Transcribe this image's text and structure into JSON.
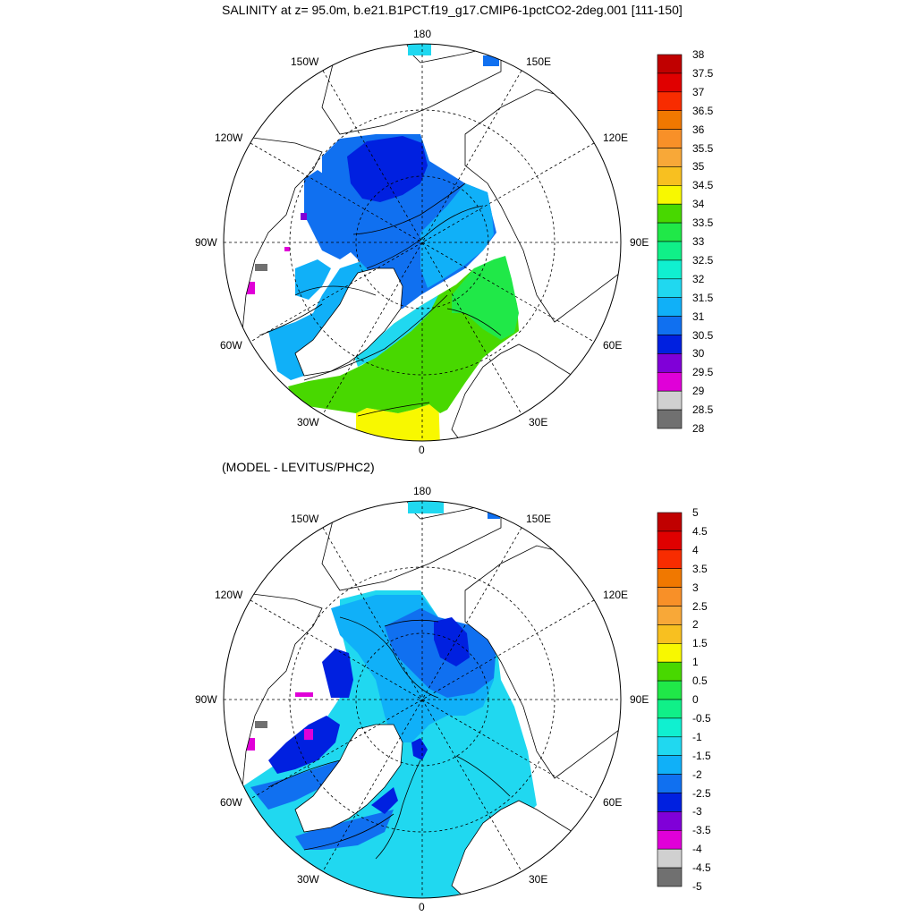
{
  "top_panel": {
    "title": "SALINITY at z=  95.0m, b.e21.B1PCT.f19_g17.CMIP6-1pctCO2-2deg.001 [111-150]",
    "lon_labels": {
      "n180": "180",
      "w150": "150W",
      "e150": "150E",
      "w120": "120W",
      "e120": "120E",
      "w90": "90W",
      "e90": "90E",
      "w60": "60W",
      "e60": "60E",
      "w30": "30W",
      "e30": "30E",
      "zero": "0"
    },
    "colorbar": {
      "labels": [
        "38",
        "37.5",
        "37",
        "36.5",
        "36",
        "35.5",
        "35",
        "34.5",
        "34",
        "33.5",
        "33",
        "32.5",
        "32",
        "31.5",
        "31",
        "30.5",
        "30",
        "29.5",
        "29",
        "28.5",
        "28"
      ],
      "colors": [
        "#c00000",
        "#e00000",
        "#f82c00",
        "#f07800",
        "#f89028",
        "#f8a838",
        "#f8c020",
        "#f8f800",
        "#48d800",
        "#20e848",
        "#10f088",
        "#10f0d0",
        "#20d8f0",
        "#10b0f8",
        "#1070f0",
        "#0020e0",
        "#8000d8",
        "#e000d8",
        "#d0d0d0",
        "#707070"
      ]
    }
  },
  "bottom_panel": {
    "title": "(MODEL - LEVITUS/PHC2)",
    "lon_labels": {
      "n180": "180",
      "w150": "150W",
      "e150": "150E",
      "w120": "120W",
      "e120": "120E",
      "w90": "90W",
      "e90": "90E",
      "w60": "60W",
      "e60": "60E",
      "w30": "30W",
      "e30": "30E",
      "zero": "0"
    },
    "colorbar": {
      "labels": [
        "5",
        "4.5",
        "4",
        "3.5",
        "3",
        "2.5",
        "2",
        "1.5",
        "1",
        "0.5",
        "0",
        "-0.5",
        "-1",
        "-1.5",
        "-2",
        "-2.5",
        "-3",
        "-3.5",
        "-4",
        "-4.5",
        "-5"
      ],
      "colors": [
        "#c00000",
        "#e00000",
        "#f82c00",
        "#f07800",
        "#f89028",
        "#f8a838",
        "#f8c020",
        "#f8f800",
        "#48d800",
        "#20e848",
        "#10f088",
        "#10f0d0",
        "#20d8f0",
        "#10b0f8",
        "#1070f0",
        "#0020e0",
        "#8000d8",
        "#e000d8",
        "#d0d0d0",
        "#707070"
      ]
    }
  }
}
